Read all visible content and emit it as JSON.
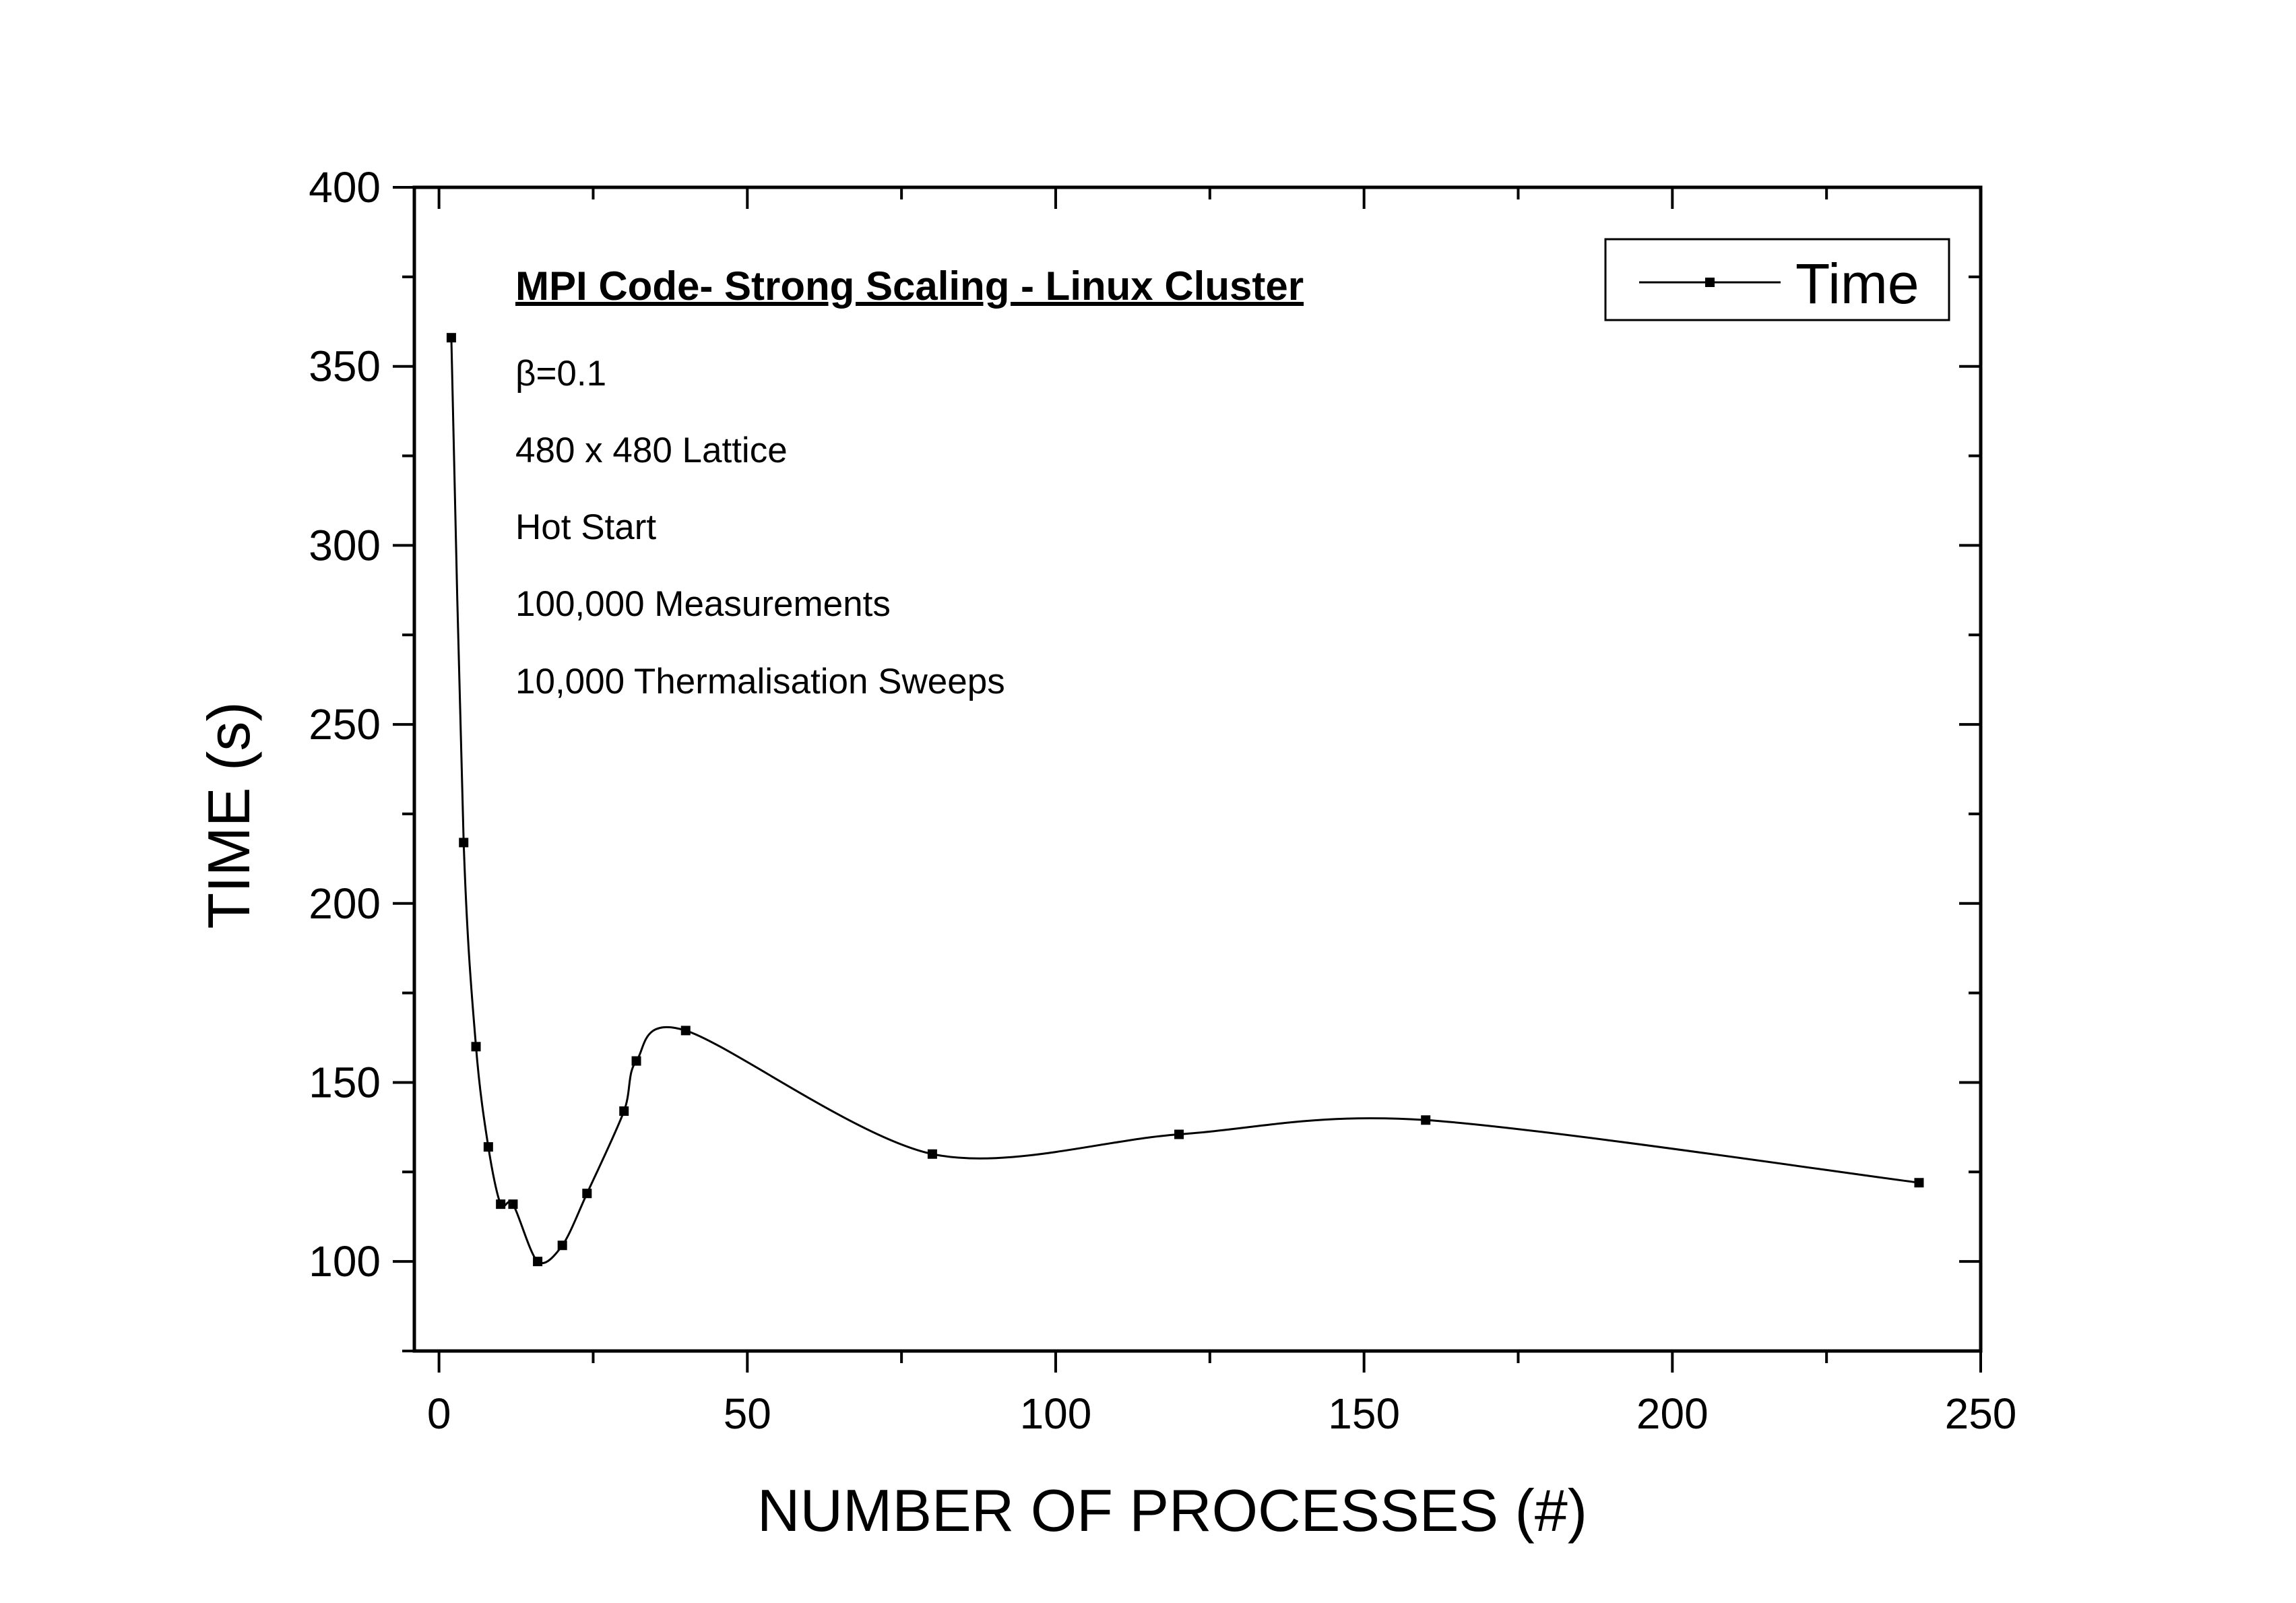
{
  "chart_data": {
    "type": "line",
    "title": "MPI Code- Strong Scaling - Linux Cluster",
    "xlabel": "NUMBER OF PROCESSES (#)",
    "ylabel": "TIME (s)",
    "xlim": [
      -4,
      250
    ],
    "ylim": [
      75,
      400
    ],
    "xticks": [
      0,
      50,
      100,
      150,
      200,
      250
    ],
    "yticks": [
      100,
      150,
      200,
      250,
      300,
      350,
      400
    ],
    "x_minor_step": 25,
    "y_minor_step": 25,
    "grid": false,
    "legend_position": "top-right",
    "annotations": [
      "β=0.1",
      "480 x 480 Lattice",
      "Hot Start",
      "100,000 Measurements",
      "10,000 Thermalisation Sweeps"
    ],
    "series": [
      {
        "name": "Time",
        "color": "#000000",
        "marker": "square",
        "x": [
          2,
          4,
          6,
          8,
          10,
          12,
          16,
          20,
          24,
          30,
          32,
          40,
          80,
          120,
          160,
          240
        ],
        "y": [
          358,
          217,
          160,
          132,
          116,
          116,
          100,
          104.5,
          119,
          142,
          156,
          164.5,
          130,
          135.5,
          139.5,
          122
        ]
      }
    ]
  }
}
